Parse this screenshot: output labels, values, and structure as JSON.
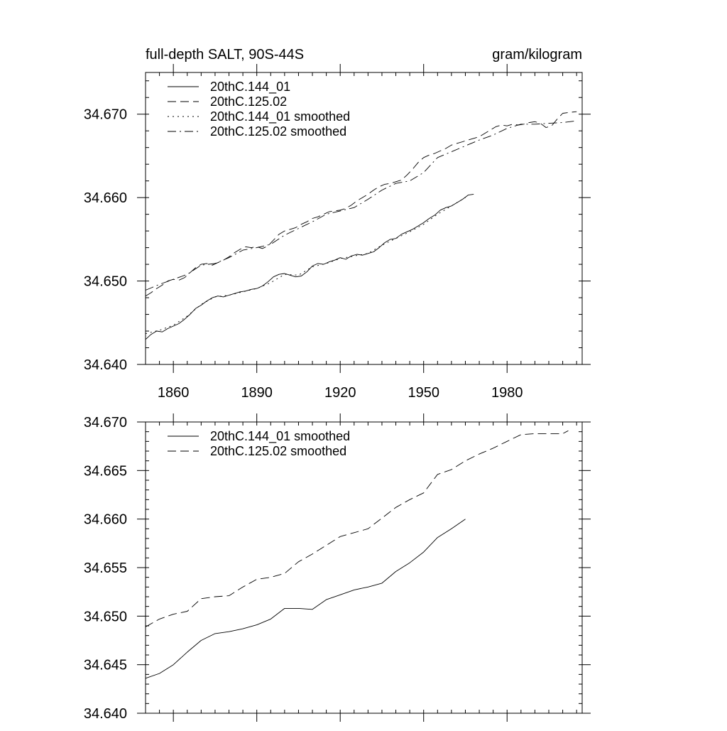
{
  "chart_data": [
    {
      "type": "line",
      "title_left": "full-depth SALT, 90S-44S",
      "title_right": "gram/kilogram",
      "xlim": [
        1850,
        2007
      ],
      "ylim": [
        34.64,
        34.675
      ],
      "xticks": [
        1860,
        1890,
        1920,
        1950,
        1980
      ],
      "xtick_labels": [
        "1860",
        "1890",
        "1920",
        "1950",
        "1980"
      ],
      "yticks": [
        34.64,
        34.65,
        34.66,
        34.67
      ],
      "ytick_labels": [
        "34.640",
        "34.650",
        "34.660",
        "34.670"
      ],
      "legend_position": "top-left",
      "series": [
        {
          "name": "20thC.144_01",
          "dash": "solid",
          "x": [
            1850,
            1852,
            1854,
            1856,
            1858,
            1860,
            1862,
            1864,
            1866,
            1868,
            1870,
            1872,
            1874,
            1876,
            1878,
            1880,
            1882,
            1884,
            1886,
            1888,
            1890,
            1892,
            1894,
            1896,
            1898,
            1900,
            1902,
            1904,
            1906,
            1908,
            1910,
            1912,
            1914,
            1916,
            1918,
            1920,
            1922,
            1924,
            1926,
            1928,
            1930,
            1932,
            1934,
            1936,
            1938,
            1940,
            1942,
            1944,
            1946,
            1948,
            1950,
            1952,
            1954,
            1956,
            1958,
            1960,
            1962,
            1964,
            1966,
            1968
          ],
          "y": [
            34.643,
            34.6436,
            34.644,
            34.6439,
            34.6443,
            34.6446,
            34.6449,
            34.6454,
            34.646,
            34.6467,
            34.6471,
            34.6476,
            34.648,
            34.6482,
            34.6481,
            34.6483,
            34.6485,
            34.6487,
            34.6488,
            34.649,
            34.6491,
            34.6494,
            34.6499,
            34.6505,
            34.6508,
            34.6509,
            34.6507,
            34.6505,
            34.6506,
            34.6511,
            34.6518,
            34.6521,
            34.652,
            34.6523,
            34.6525,
            34.6528,
            34.6526,
            34.653,
            34.6532,
            34.6531,
            34.6533,
            34.6535,
            34.654,
            34.6546,
            34.655,
            34.6551,
            34.6556,
            34.6559,
            34.6562,
            34.6566,
            34.657,
            34.6575,
            34.6579,
            34.6585,
            34.6588,
            34.659,
            34.6594,
            34.6598,
            34.6603,
            34.6604
          ]
        },
        {
          "name": "20thC.125.02",
          "dash": "long",
          "x": [
            1850,
            1852,
            1854,
            1856,
            1858,
            1860,
            1862,
            1864,
            1866,
            1868,
            1870,
            1872,
            1874,
            1876,
            1878,
            1880,
            1882,
            1884,
            1886,
            1888,
            1890,
            1892,
            1894,
            1896,
            1898,
            1900,
            1902,
            1904,
            1906,
            1908,
            1910,
            1912,
            1914,
            1916,
            1918,
            1920,
            1922,
            1924,
            1926,
            1928,
            1930,
            1932,
            1934,
            1936,
            1938,
            1940,
            1942,
            1944,
            1946,
            1948,
            1950,
            1952,
            1954,
            1956,
            1958,
            1960,
            1962,
            1964,
            1966,
            1968,
            1970,
            1972,
            1974,
            1976,
            1978,
            1980,
            1982,
            1984,
            1986,
            1988,
            1990,
            1992,
            1994,
            1996,
            1998,
            2000,
            2002,
            2005
          ],
          "y": [
            34.6482,
            34.6486,
            34.6491,
            34.6495,
            34.65,
            34.6502,
            34.6501,
            34.6504,
            34.651,
            34.6516,
            34.652,
            34.6521,
            34.6519,
            34.6522,
            34.6525,
            34.6529,
            34.6534,
            34.6538,
            34.6541,
            34.654,
            34.6541,
            34.6539,
            34.6542,
            34.6549,
            34.6556,
            34.656,
            34.6562,
            34.6564,
            34.6568,
            34.6571,
            34.6575,
            34.6577,
            34.658,
            34.6583,
            34.6584,
            34.6585,
            34.6587,
            34.6591,
            34.6596,
            34.66,
            34.6604,
            34.6609,
            34.6613,
            34.6616,
            34.6617,
            34.6619,
            34.6621,
            34.6627,
            34.6634,
            34.6642,
            34.6648,
            34.6651,
            34.6653,
            34.6656,
            34.6659,
            34.6663,
            34.6665,
            34.6667,
            34.6669,
            34.6671,
            34.6673,
            34.6677,
            34.6681,
            34.6685,
            34.6687,
            34.6686,
            34.6688,
            34.6687,
            34.6688,
            34.669,
            34.6691,
            34.6689,
            34.6684,
            34.6686,
            34.6694,
            34.6701,
            34.6702,
            34.6703
          ]
        },
        {
          "name": "20thC.144_01 smoothed",
          "dash": "dot",
          "x": [
            1850,
            1855,
            1860,
            1865,
            1870,
            1875,
            1880,
            1885,
            1890,
            1895,
            1900,
            1905,
            1910,
            1915,
            1920,
            1925,
            1930,
            1935,
            1940,
            1945,
            1950,
            1955,
            1960,
            1965
          ],
          "y": [
            34.6437,
            34.6441,
            34.6447,
            34.6458,
            34.6472,
            34.6481,
            34.6483,
            34.6487,
            34.6491,
            34.6498,
            34.6508,
            34.6507,
            34.6517,
            34.6521,
            34.6527,
            34.653,
            34.6533,
            34.6543,
            34.6551,
            34.6559,
            34.6568,
            34.658,
            34.659,
            34.66
          ]
        },
        {
          "name": "20thC.125.02 smoothed",
          "dash": "dashdot",
          "x": [
            1850,
            1855,
            1860,
            1865,
            1870,
            1875,
            1880,
            1885,
            1890,
            1895,
            1900,
            1905,
            1910,
            1915,
            1920,
            1925,
            1930,
            1935,
            1940,
            1945,
            1950,
            1955,
            1960,
            1965,
            1970,
            1975,
            1980,
            1985,
            1990,
            1995,
            2000,
            2005
          ],
          "y": [
            34.6489,
            34.6496,
            34.6502,
            34.6508,
            34.6519,
            34.6521,
            34.6528,
            34.6537,
            34.654,
            34.6544,
            34.6555,
            34.6563,
            34.6571,
            34.658,
            34.6584,
            34.6588,
            34.6598,
            34.6609,
            34.6617,
            34.662,
            34.663,
            34.6648,
            34.6655,
            34.6662,
            34.6669,
            34.6675,
            34.6683,
            34.6688,
            34.6688,
            34.6689,
            34.669,
            34.6692
          ]
        }
      ]
    },
    {
      "type": "line",
      "xlim": [
        1850,
        2007
      ],
      "ylim": [
        34.64,
        34.67
      ],
      "xticks": [
        1860,
        1890,
        1920,
        1950,
        1980
      ],
      "yticks": [
        34.64,
        34.645,
        34.65,
        34.655,
        34.66,
        34.665,
        34.67
      ],
      "ytick_labels": [
        "34.640",
        "34.645",
        "34.650",
        "34.655",
        "34.660",
        "34.665",
        "34.670"
      ],
      "legend_position": "top-left",
      "series": [
        {
          "name": "20thC.144_01 smoothed",
          "dash": "solid",
          "x": [
            1850,
            1855,
            1860,
            1865,
            1870,
            1875,
            1880,
            1885,
            1890,
            1895,
            1900,
            1905,
            1910,
            1915,
            1920,
            1925,
            1930,
            1935,
            1940,
            1945,
            1950,
            1955,
            1960,
            1965
          ],
          "y": [
            34.6436,
            34.6441,
            34.645,
            34.6463,
            34.6475,
            34.6482,
            34.6484,
            34.6487,
            34.6491,
            34.6497,
            34.6508,
            34.6508,
            34.6507,
            34.6517,
            34.6522,
            34.6527,
            34.653,
            34.6534,
            34.6546,
            34.6555,
            34.6566,
            34.6581,
            34.659,
            34.66
          ]
        },
        {
          "name": "20thC.125.02 smoothed",
          "dash": "long",
          "x": [
            1850,
            1855,
            1860,
            1865,
            1870,
            1875,
            1880,
            1885,
            1890,
            1895,
            1900,
            1905,
            1910,
            1915,
            1920,
            1925,
            1930,
            1935,
            1940,
            1945,
            1950,
            1955,
            1960,
            1965,
            1970,
            1975,
            1980,
            1985,
            1990,
            1995,
            2000,
            2002
          ],
          "y": [
            34.6489,
            34.6497,
            34.6502,
            34.6505,
            34.6518,
            34.652,
            34.6521,
            34.653,
            34.6538,
            34.654,
            34.6544,
            34.6556,
            34.6564,
            34.6573,
            34.6582,
            34.6586,
            34.659,
            34.6601,
            34.6612,
            34.662,
            34.6627,
            34.6646,
            34.6651,
            34.666,
            34.6667,
            34.6673,
            34.668,
            34.6687,
            34.6688,
            34.6688,
            34.6688,
            34.6691
          ]
        }
      ]
    }
  ]
}
